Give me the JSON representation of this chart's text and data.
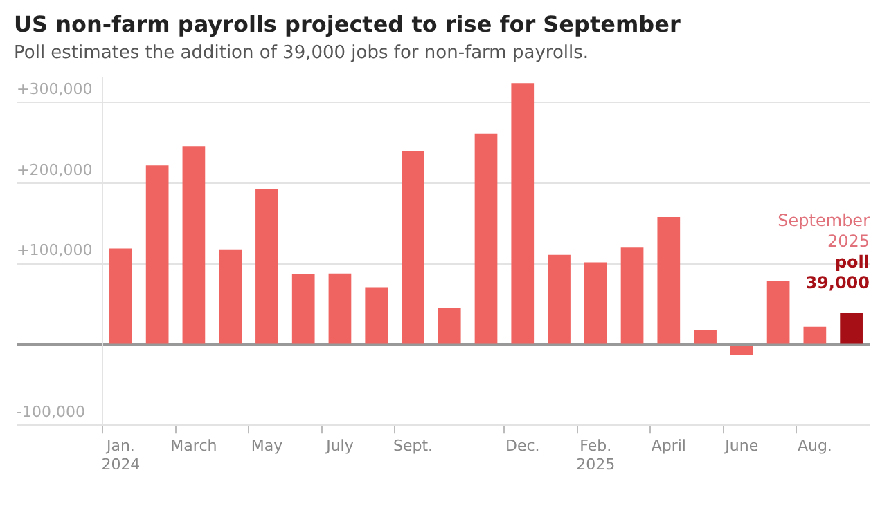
{
  "chart_data": {
    "type": "bar",
    "title": "US non-farm payrolls projected to rise for September",
    "subtitle": "Poll estimates the addition of 39,000 jobs for non-farm payrolls.",
    "categories": [
      "Jan.\n2024",
      null,
      "March",
      null,
      "May",
      null,
      "July",
      null,
      "Sept.",
      null,
      null,
      "Dec.",
      null,
      "Feb.\n2025",
      null,
      "April",
      null,
      "June",
      null,
      "Aug.",
      null
    ],
    "values": [
      119000,
      222000,
      246000,
      118000,
      193000,
      87000,
      88000,
      71000,
      240000,
      45000,
      261000,
      324000,
      111000,
      102000,
      120000,
      158000,
      18000,
      -13000,
      79000,
      22000,
      39000
    ],
    "colors": [
      "#ef6461",
      "#ef6461",
      "#ef6461",
      "#ef6461",
      "#ef6461",
      "#ef6461",
      "#ef6461",
      "#ef6461",
      "#ef6461",
      "#ef6461",
      "#ef6461",
      "#ef6461",
      "#ef6461",
      "#ef6461",
      "#ef6461",
      "#ef6461",
      "#ef6461",
      "#ef6461",
      "#ef6461",
      "#ef6461",
      "#a50f15"
    ],
    "ylim": [
      -100000,
      330000
    ],
    "yticks": [
      {
        "value": -100000,
        "label": "-100,000"
      },
      {
        "value": 0,
        "label": null
      },
      {
        "value": 100000,
        "label": "+100,000"
      },
      {
        "value": 200000,
        "label": "+200,000"
      },
      {
        "value": 300000,
        "label": "+300,000"
      }
    ],
    "grid": "y",
    "legend": false,
    "annotations": [
      "September\n2025",
      "poll\n39,000"
    ]
  }
}
